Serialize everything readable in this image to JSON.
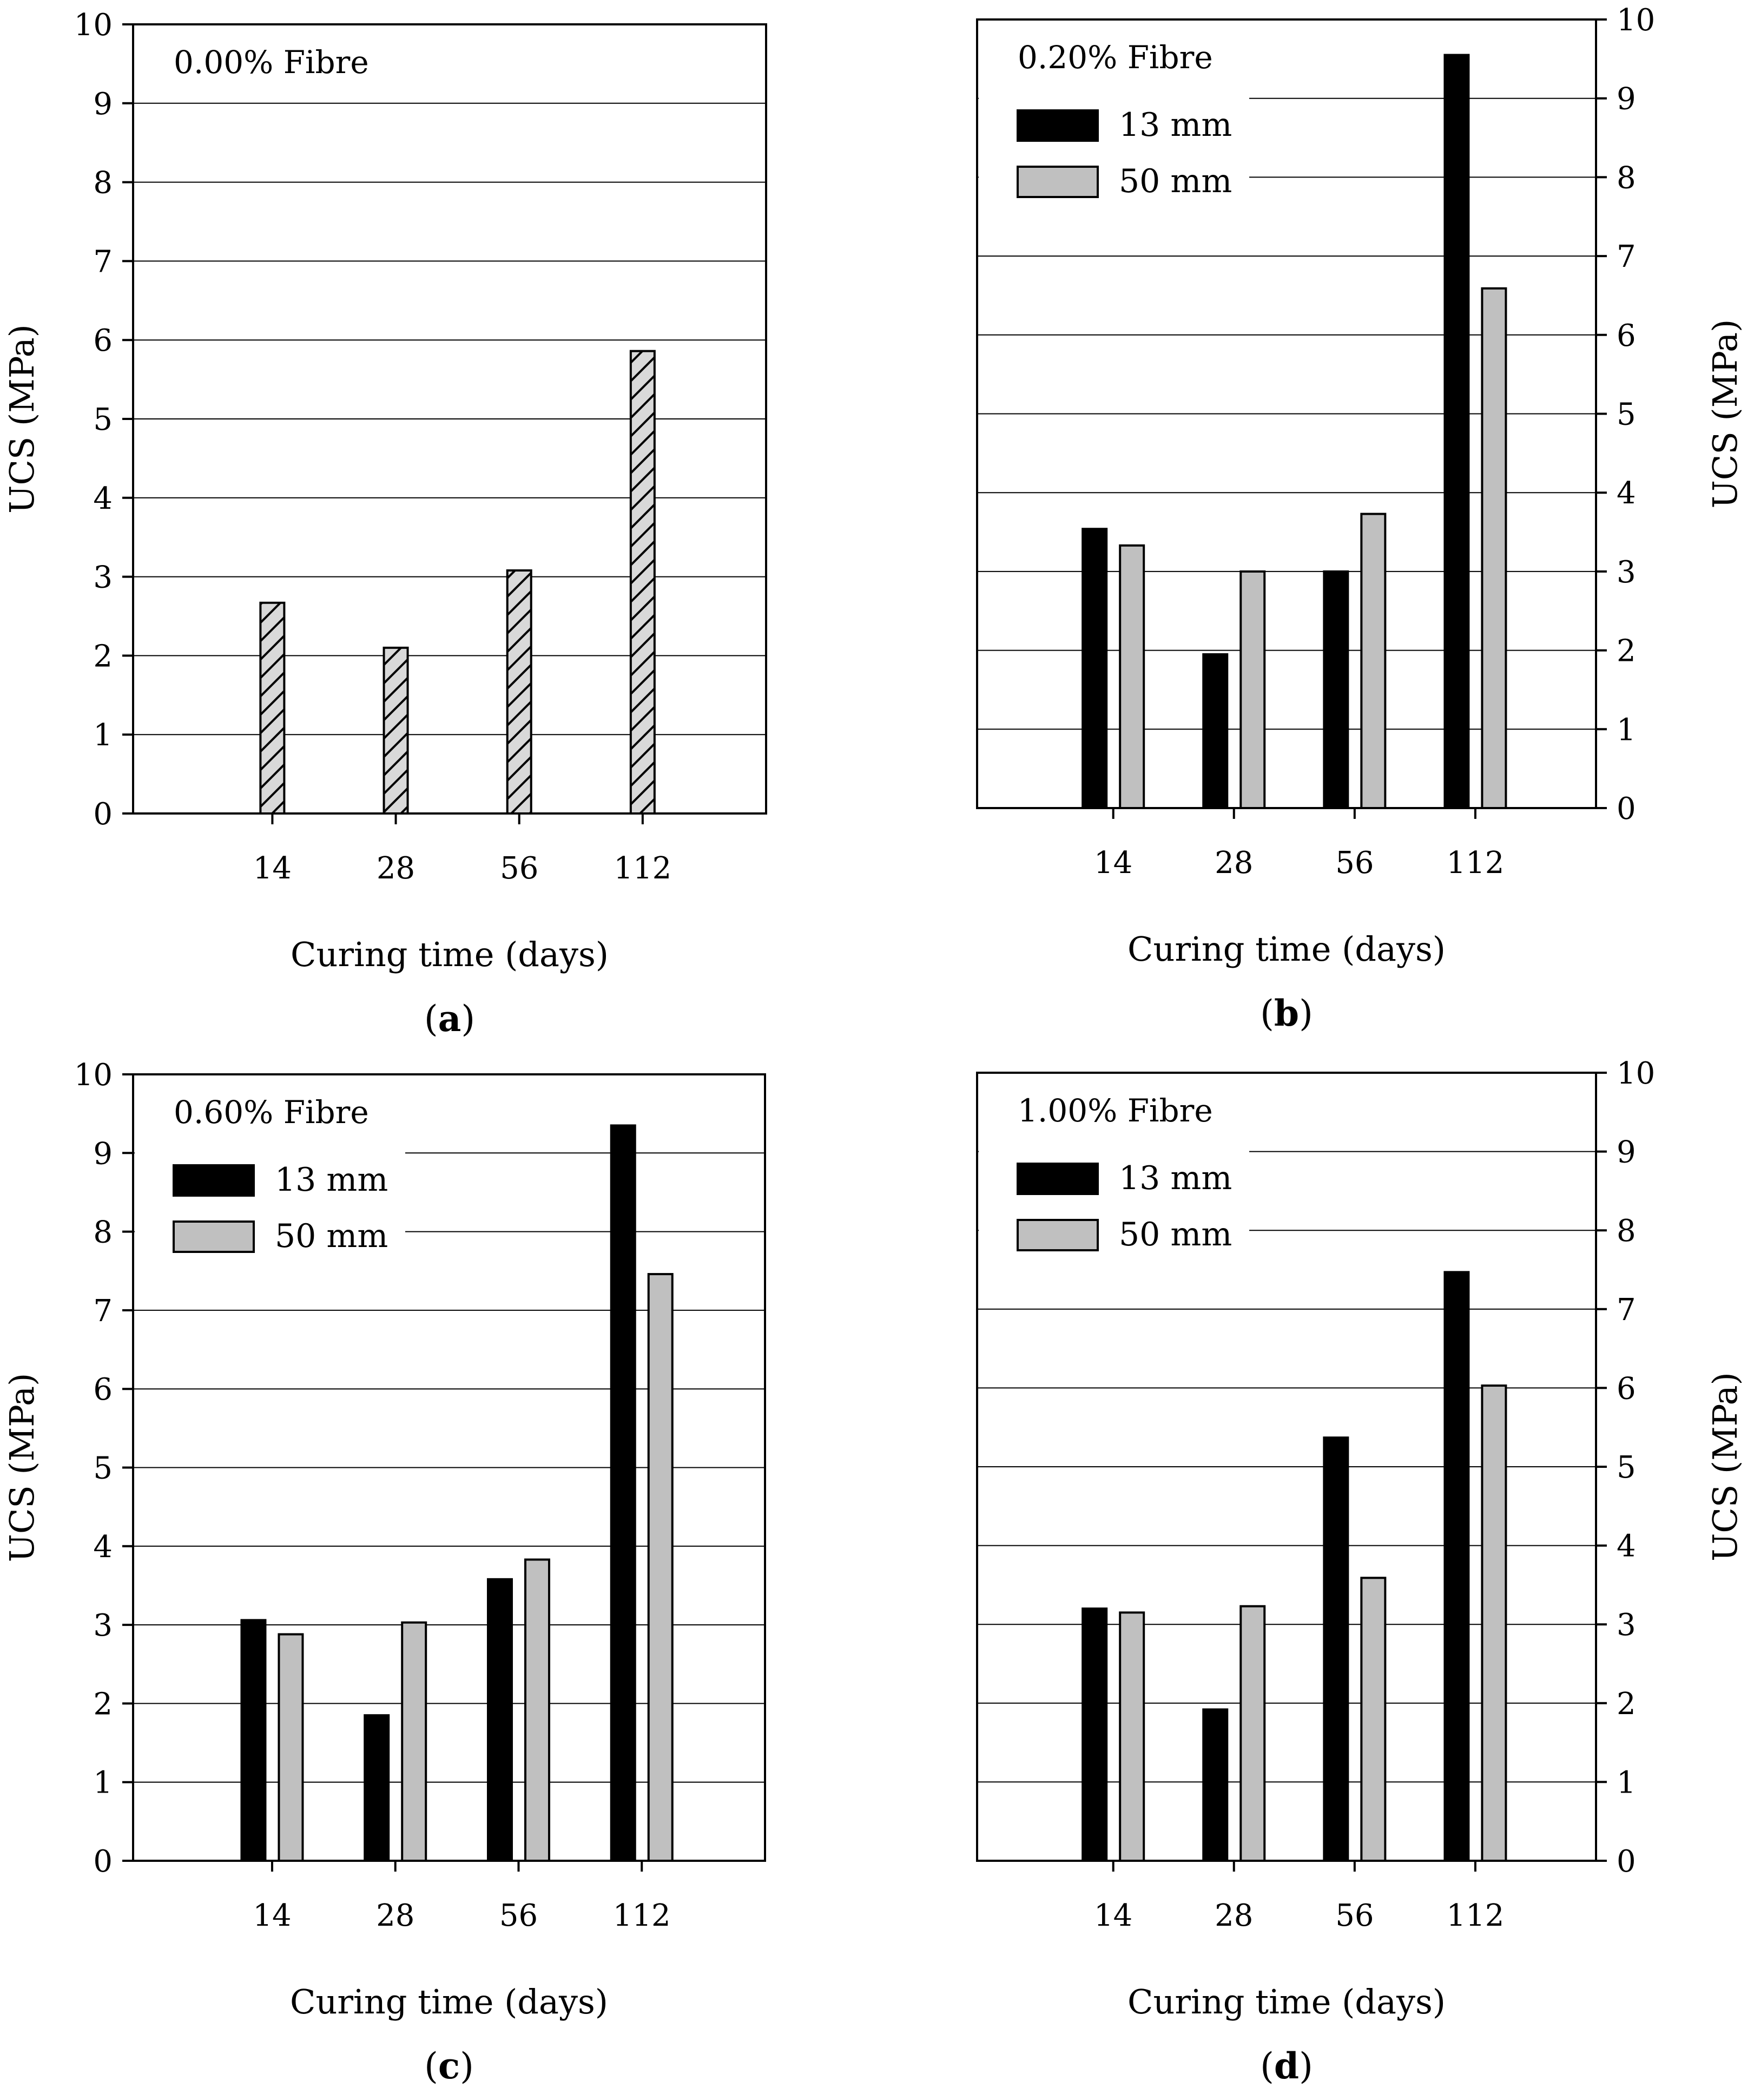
{
  "chart_data": [
    {
      "type": "bar",
      "panel_label": "a",
      "title": "0.00% Fibre",
      "xlabel": "Curing time (days)",
      "ylabel": "UCS (MPa)",
      "y_axis_side": "left",
      "categories": [
        "14",
        "28",
        "56",
        "112"
      ],
      "ylim": [
        0,
        10
      ],
      "yticks": [
        "0",
        "1",
        "2",
        "3",
        "4",
        "5",
        "6",
        "7",
        "8",
        "9",
        "10"
      ],
      "series": [
        {
          "name": "",
          "values": [
            2.67,
            2.1,
            3.08,
            5.86
          ],
          "color": "#d9d9d9",
          "pattern": "hatch"
        }
      ],
      "legend": "none"
    },
    {
      "type": "bar",
      "panel_label": "b",
      "title": "0.20% Fibre",
      "xlabel": "Curing time (days)",
      "ylabel": "UCS (MPa)",
      "y_axis_side": "right",
      "categories": [
        "14",
        "28",
        "56",
        "112"
      ],
      "ylim": [
        0,
        10
      ],
      "yticks": [
        "0",
        "1",
        "2",
        "3",
        "4",
        "5",
        "6",
        "7",
        "8",
        "9",
        "10"
      ],
      "series": [
        {
          "name": "13 mm",
          "values": [
            3.54,
            1.95,
            3.0,
            9.55
          ],
          "color": "#000000"
        },
        {
          "name": "50 mm",
          "values": [
            3.33,
            3.0,
            3.73,
            6.59
          ],
          "color": "#c0c0c0"
        }
      ],
      "legend": "top-left"
    },
    {
      "type": "bar",
      "panel_label": "c",
      "title": "0.60% Fibre",
      "xlabel": "Curing time (days)",
      "ylabel": "UCS (MPa)",
      "y_axis_side": "left",
      "categories": [
        "14",
        "28",
        "56",
        "112"
      ],
      "ylim": [
        0,
        10
      ],
      "yticks": [
        "0",
        "1",
        "2",
        "3",
        "4",
        "5",
        "6",
        "7",
        "8",
        "9",
        "10"
      ],
      "series": [
        {
          "name": "13 mm",
          "values": [
            3.06,
            1.85,
            3.58,
            9.35
          ],
          "color": "#000000"
        },
        {
          "name": "50 mm",
          "values": [
            2.88,
            3.03,
            3.83,
            7.46
          ],
          "color": "#c0c0c0"
        }
      ],
      "legend": "top-left"
    },
    {
      "type": "bar",
      "panel_label": "d",
      "title": "1.00% Fibre",
      "xlabel": "Curing time (days)",
      "ylabel": "UCS (MPa)",
      "y_axis_side": "right",
      "categories": [
        "14",
        "28",
        "56",
        "112"
      ],
      "ylim": [
        0,
        10
      ],
      "yticks": [
        "0",
        "1",
        "2",
        "3",
        "4",
        "5",
        "6",
        "7",
        "8",
        "9",
        "10"
      ],
      "series": [
        {
          "name": "13 mm",
          "values": [
            3.2,
            1.92,
            5.37,
            7.47
          ],
          "color": "#000000"
        },
        {
          "name": "50 mm",
          "values": [
            3.15,
            3.23,
            3.59,
            6.03
          ],
          "color": "#c0c0c0"
        }
      ],
      "legend": "top-left"
    }
  ]
}
